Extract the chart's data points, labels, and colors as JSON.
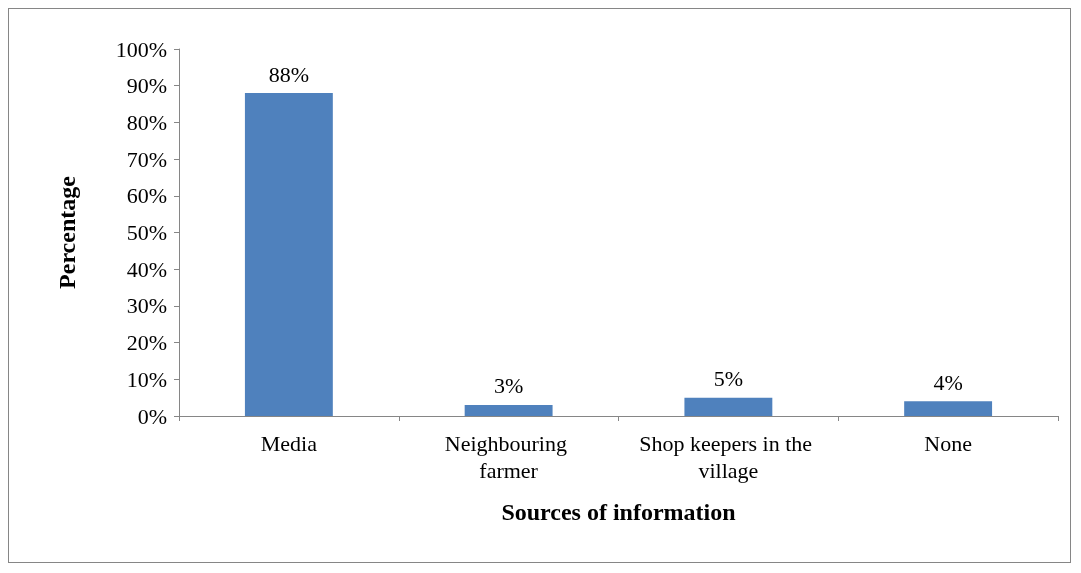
{
  "chart_data": {
    "type": "bar",
    "xlabel": "Sources of information",
    "ylabel": "Percentage",
    "categories": [
      "Media",
      "Neighbouring farmer",
      "Shop keepers in the village",
      "None"
    ],
    "values": [
      88,
      3,
      5,
      4
    ],
    "value_labels": [
      "88%",
      "3%",
      "5%",
      "4%"
    ],
    "color": "#4f81bd",
    "ylim": [
      0,
      100
    ],
    "yticks": [
      {
        "value": 0,
        "label": "0%"
      },
      {
        "value": 10,
        "label": "10%"
      },
      {
        "value": 20,
        "label": "20%"
      },
      {
        "value": 30,
        "label": "30%"
      },
      {
        "value": 40,
        "label": "40%"
      },
      {
        "value": 50,
        "label": "50%"
      },
      {
        "value": 60,
        "label": "60%"
      },
      {
        "value": 70,
        "label": "70%"
      },
      {
        "value": 80,
        "label": "80%"
      },
      {
        "value": 90,
        "label": "90%"
      },
      {
        "value": 100,
        "label": "100%"
      }
    ],
    "grid": false
  }
}
